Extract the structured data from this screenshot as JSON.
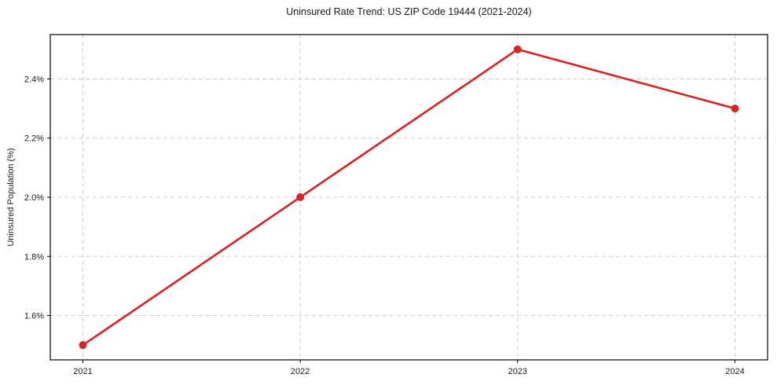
{
  "chart_data": {
    "type": "line",
    "title": "Uninsured Rate Trend: US ZIP Code 19444 (2021-2024)",
    "xlabel": "",
    "ylabel": "Uninsured Population (%)",
    "x": [
      2021,
      2022,
      2023,
      2024
    ],
    "values": [
      1.5,
      2.0,
      2.5,
      2.3
    ],
    "xticks": [
      2021,
      2022,
      2023,
      2024
    ],
    "xtick_labels": [
      "2021",
      "2022",
      "2023",
      "2024"
    ],
    "yticks": [
      1.6,
      1.8,
      2.0,
      2.2,
      2.4
    ],
    "ytick_labels": [
      "1.6%",
      "1.8%",
      "2.0%",
      "2.2%",
      "2.4%"
    ],
    "xlim": [
      2020.85,
      2024.15
    ],
    "ylim": [
      1.45,
      2.55
    ],
    "grid": true,
    "grid_style": "dashed",
    "legend": false,
    "line_color": "#d62728",
    "marker": "circle",
    "grid_color": "#cccccc",
    "spine_color": "#000000",
    "text_color": "#1a1a1a",
    "background": "#ffffff"
  }
}
